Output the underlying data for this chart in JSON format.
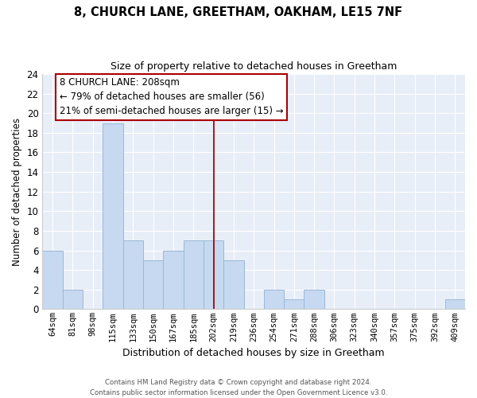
{
  "title": "8, CHURCH LANE, GREETHAM, OAKHAM, LE15 7NF",
  "subtitle": "Size of property relative to detached houses in Greetham",
  "xlabel": "Distribution of detached houses by size in Greetham",
  "ylabel": "Number of detached properties",
  "categories": [
    "64sqm",
    "81sqm",
    "98sqm",
    "115sqm",
    "133sqm",
    "150sqm",
    "167sqm",
    "185sqm",
    "202sqm",
    "219sqm",
    "236sqm",
    "254sqm",
    "271sqm",
    "288sqm",
    "306sqm",
    "323sqm",
    "340sqm",
    "357sqm",
    "375sqm",
    "392sqm",
    "409sqm"
  ],
  "values": [
    6,
    2,
    0,
    19,
    7,
    5,
    6,
    7,
    7,
    5,
    0,
    2,
    1,
    2,
    0,
    0,
    0,
    0,
    0,
    0,
    1
  ],
  "bar_color": "#c6d9f0",
  "bar_edge_color": "#9ab8d8",
  "vline_x_index": 8,
  "vline_color": "#aa0000",
  "annotation_line1": "8 CHURCH LANE: 208sqm",
  "annotation_line2": "← 79% of detached houses are smaller (56)",
  "annotation_line3": "21% of semi-detached houses are larger (15) →",
  "annotation_box_color": "#ffffff",
  "annotation_box_edge": "#aa0000",
  "ylim": [
    0,
    24
  ],
  "yticks": [
    0,
    2,
    4,
    6,
    8,
    10,
    12,
    14,
    16,
    18,
    20,
    22,
    24
  ],
  "footer_line1": "Contains HM Land Registry data © Crown copyright and database right 2024.",
  "footer_line2": "Contains public sector information licensed under the Open Government Licence v3.0.",
  "bg_color": "#ffffff",
  "plot_bg_color": "#e8eef8",
  "grid_color": "#ffffff"
}
